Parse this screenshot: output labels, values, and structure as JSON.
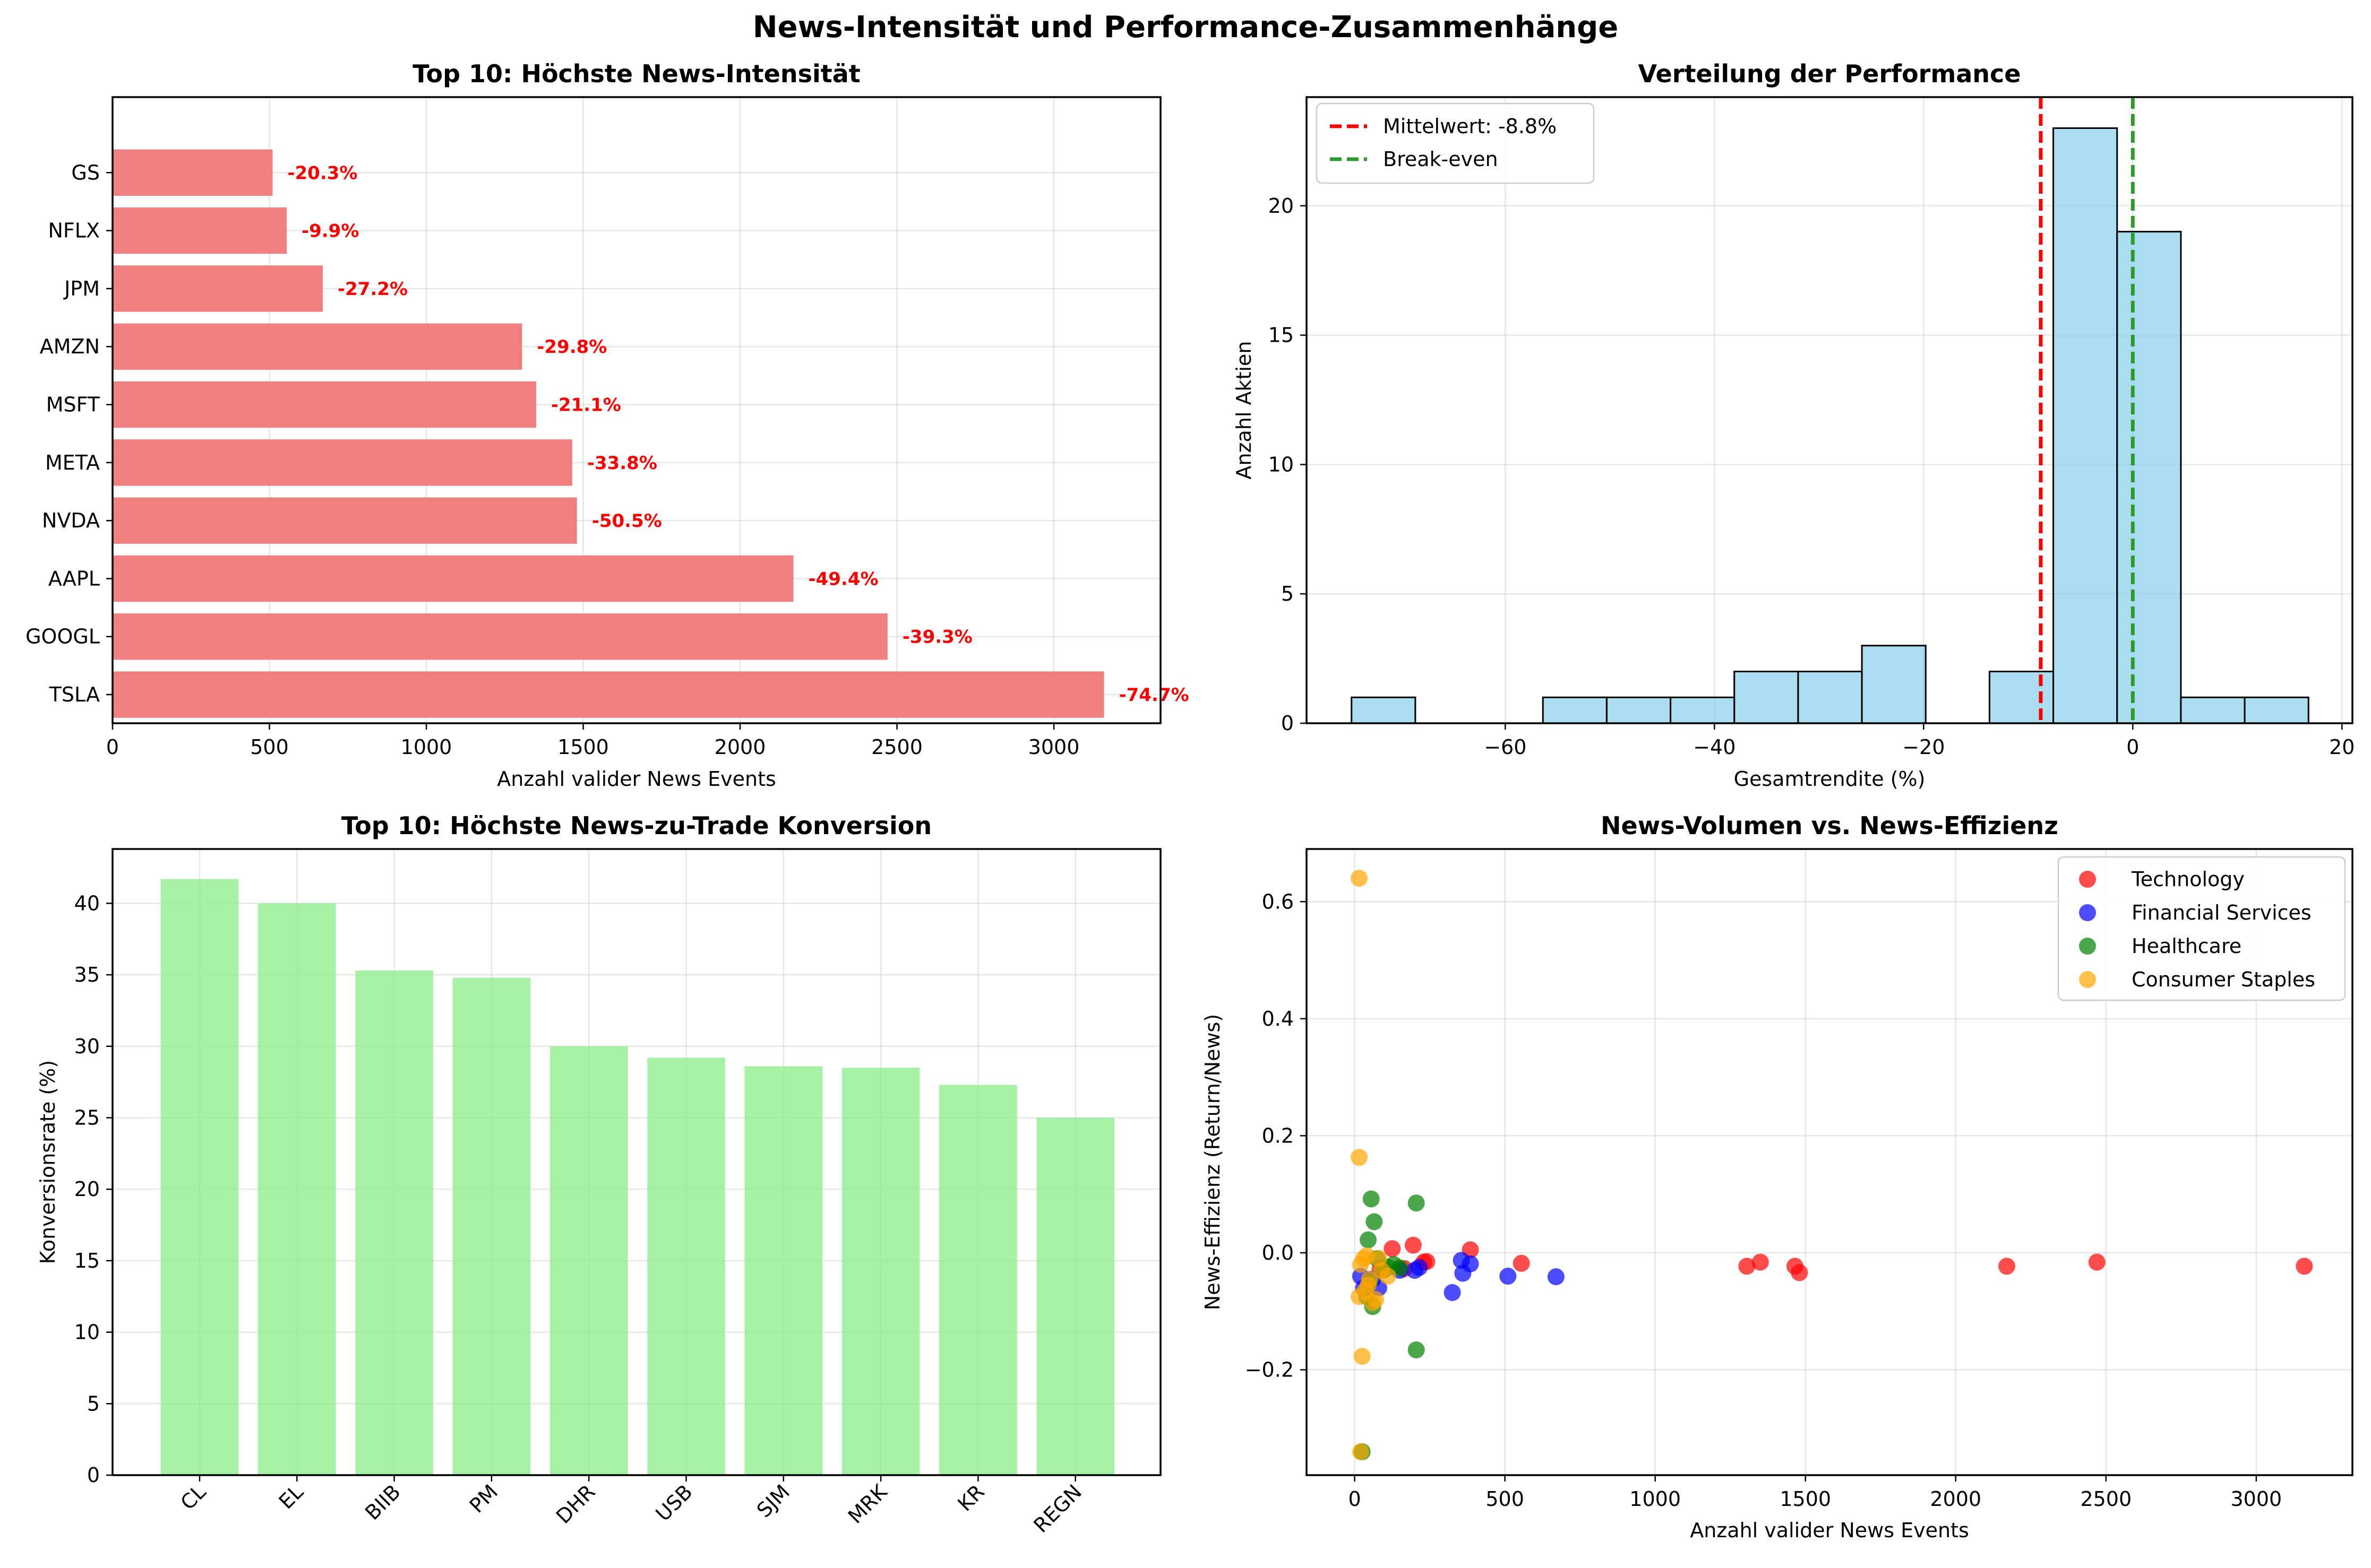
{
  "suptitle": "News-Intensität und Performance-Zusammenhänge",
  "chart_data": [
    {
      "type": "bar",
      "orientation": "horizontal",
      "title": "Top 10: Höchste News-Intensität",
      "xlabel": "Anzahl valider News Events",
      "ylabel": "",
      "xlim": [
        0,
        3340
      ],
      "xticks": [
        0,
        500,
        1000,
        1500,
        2000,
        2500,
        3000
      ],
      "grid": true,
      "color": "#f08080",
      "categories": [
        "TSLA",
        "GOOGL",
        "AAPL",
        "NVDA",
        "META",
        "MSFT",
        "AMZN",
        "JPM",
        "NFLX",
        "GS"
      ],
      "values": [
        3160,
        2470,
        2170,
        1480,
        1465,
        1350,
        1305,
        670,
        555,
        510
      ],
      "data_labels": [
        "-74.7%",
        "-39.3%",
        "-49.4%",
        "-50.5%",
        "-33.8%",
        "-21.1%",
        "-29.8%",
        "-27.2%",
        "-9.9%",
        "-20.3%"
      ]
    },
    {
      "type": "histogram",
      "title": "Verteilung der Performance",
      "xlabel": "Gesamtrendite (%)",
      "ylabel": "Anzahl Aktien",
      "xlim": [
        -79,
        21
      ],
      "ylim": [
        0,
        24.2
      ],
      "xticks": [
        -60,
        -40,
        -20,
        0,
        20
      ],
      "yticks": [
        0,
        5,
        10,
        15,
        20
      ],
      "grid": true,
      "color": "#87ceeb",
      "bins": [
        {
          "x0": -74.7,
          "x1": -68.6,
          "count": 1
        },
        {
          "x0": -68.6,
          "x1": -62.5,
          "count": 0
        },
        {
          "x0": -62.5,
          "x1": -56.4,
          "count": 0
        },
        {
          "x0": -56.4,
          "x1": -50.3,
          "count": 1
        },
        {
          "x0": -50.3,
          "x1": -44.2,
          "count": 1
        },
        {
          "x0": -44.2,
          "x1": -38.1,
          "count": 1
        },
        {
          "x0": -38.1,
          "x1": -32.0,
          "count": 2
        },
        {
          "x0": -32.0,
          "x1": -25.9,
          "count": 2
        },
        {
          "x0": -25.9,
          "x1": -19.8,
          "count": 3
        },
        {
          "x0": -19.8,
          "x1": -13.7,
          "count": 0
        },
        {
          "x0": -13.7,
          "x1": -7.6,
          "count": 2
        },
        {
          "x0": -7.6,
          "x1": -1.5,
          "count": 23
        },
        {
          "x0": -1.5,
          "x1": 4.6,
          "count": 19
        },
        {
          "x0": 4.6,
          "x1": 10.7,
          "count": 1
        },
        {
          "x0": 10.7,
          "x1": 16.8,
          "count": 1
        }
      ],
      "vlines": [
        {
          "x": -8.8,
          "color": "#ff0000",
          "label": "Mittelwert: -8.8%"
        },
        {
          "x": 0,
          "color": "#2e9a2e",
          "label": "Break-even"
        }
      ],
      "legend_position": "top-left"
    },
    {
      "type": "bar",
      "title": "Top 10: Höchste News-zu-Trade Konversion",
      "xlabel": "",
      "ylabel": "Konversionsrate (%)",
      "ylim": [
        0,
        43.8
      ],
      "yticks": [
        0,
        5,
        10,
        15,
        20,
        25,
        30,
        35,
        40
      ],
      "grid": true,
      "color": "#90ee90",
      "categories": [
        "CL",
        "EL",
        "BIIB",
        "PM",
        "DHR",
        "USB",
        "SJM",
        "MRK",
        "KR",
        "REGN"
      ],
      "values": [
        41.7,
        40.0,
        35.3,
        34.8,
        30.0,
        29.2,
        28.6,
        28.5,
        27.3,
        25.0
      ]
    },
    {
      "type": "scatter",
      "title": "News-Volumen vs. News-Effizienz",
      "xlabel": "Anzahl valider News Events",
      "ylabel": "News-Effizienz (Return/News)",
      "xlim": [
        -160,
        3320
      ],
      "ylim": [
        -0.38,
        0.69
      ],
      "xticks": [
        0,
        500,
        1000,
        1500,
        2000,
        2500,
        3000
      ],
      "yticks": [
        -0.2,
        0.0,
        0.2,
        0.4,
        0.6
      ],
      "grid": true,
      "legend_position": "top-right",
      "series": [
        {
          "name": "Technology",
          "color": "#ff0000",
          "points": [
            [
              3160,
              -0.023
            ],
            [
              2470,
              -0.016
            ],
            [
              2170,
              -0.023
            ],
            [
              1480,
              -0.034
            ],
            [
              1465,
              -0.023
            ],
            [
              1350,
              -0.016
            ],
            [
              1305,
              -0.023
            ],
            [
              555,
              -0.018
            ],
            [
              385,
              0.005
            ],
            [
              240,
              -0.015
            ],
            [
              230,
              -0.016
            ],
            [
              195,
              0.013
            ],
            [
              165,
              -0.027
            ],
            [
              125,
              0.007
            ],
            [
              85,
              -0.027
            ]
          ]
        },
        {
          "name": "Financial Services",
          "color": "#0000ff",
          "points": [
            [
              670,
              -0.041
            ],
            [
              510,
              -0.04
            ],
            [
              385,
              -0.019
            ],
            [
              360,
              -0.035
            ],
            [
              355,
              -0.013
            ],
            [
              325,
              -0.068
            ],
            [
              215,
              -0.025
            ],
            [
              200,
              -0.03
            ],
            [
              150,
              -0.03
            ],
            [
              80,
              -0.06
            ],
            [
              60,
              -0.045
            ],
            [
              30,
              -0.06
            ],
            [
              20,
              -0.04
            ]
          ]
        },
        {
          "name": "Healthcare",
          "color": "#008000",
          "points": [
            [
              205,
              0.085
            ],
            [
              205,
              -0.166
            ],
            [
              65,
              0.053
            ],
            [
              55,
              0.092
            ],
            [
              45,
              0.022
            ],
            [
              130,
              -0.02
            ],
            [
              110,
              -0.025
            ],
            [
              95,
              -0.03
            ],
            [
              75,
              -0.01
            ],
            [
              60,
              -0.092
            ],
            [
              50,
              -0.05
            ],
            [
              40,
              -0.075
            ],
            [
              25,
              -0.34
            ],
            [
              150,
              -0.026
            ]
          ]
        },
        {
          "name": "Consumer Staples",
          "color": "#ffa500",
          "points": [
            [
              15,
              0.64
            ],
            [
              15,
              0.163
            ],
            [
              25,
              -0.177
            ],
            [
              20,
              -0.34
            ],
            [
              15,
              -0.075
            ],
            [
              30,
              -0.01
            ],
            [
              40,
              -0.005
            ],
            [
              50,
              -0.045
            ],
            [
              60,
              -0.085
            ],
            [
              35,
              -0.065
            ],
            [
              70,
              -0.08
            ],
            [
              80,
              -0.01
            ],
            [
              90,
              -0.03
            ],
            [
              110,
              -0.04
            ],
            [
              20,
              -0.02
            ],
            [
              45,
              -0.055
            ]
          ]
        }
      ]
    }
  ]
}
